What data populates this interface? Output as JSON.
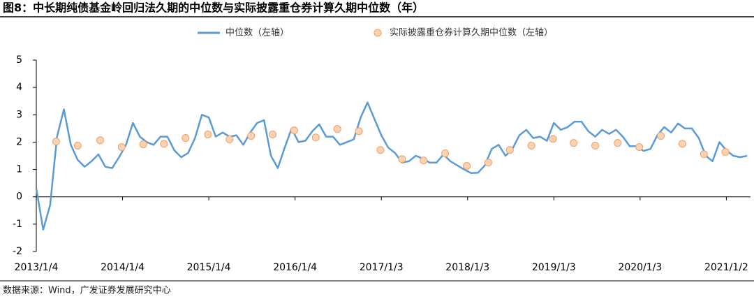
{
  "chart_data": {
    "type": "line",
    "title": "图8：中长期纯债基金岭回归法久期的中位数与实际披露重仓券计算久期中位数（年）",
    "source": "数据来源：Wind，广发证券发展研究中心",
    "xlim": [
      2013,
      2021.28
    ],
    "xticks": [
      {
        "value": 2013,
        "label": "2013/1/4"
      },
      {
        "value": 2014,
        "label": "2014/1/4"
      },
      {
        "value": 2015,
        "label": "2015/1/4"
      },
      {
        "value": 2016,
        "label": "2016/1/4"
      },
      {
        "value": 2017,
        "label": "2017/1/3"
      },
      {
        "value": 2018,
        "label": "2018/1/3"
      },
      {
        "value": 2019,
        "label": "2019/1/3"
      },
      {
        "value": 2020,
        "label": "2020/1/3"
      },
      {
        "value": 2021,
        "label": "2021/1/2"
      }
    ],
    "ylim": [
      -2,
      5
    ],
    "yticks": [
      -2,
      -1,
      0,
      1,
      2,
      3,
      4,
      5
    ],
    "legend": "top",
    "series": [
      {
        "name": "中位数（左轴）",
        "type": "line",
        "color": "#5b9bd5",
        "x": [
          2013,
          2013.08,
          2013.16,
          2013.24,
          2013.32,
          2013.4,
          2013.48,
          2013.56,
          2013.64,
          2013.72,
          2013.8,
          2013.88,
          2013.96,
          2014.04,
          2014.12,
          2014.2,
          2014.28,
          2014.36,
          2014.44,
          2014.52,
          2014.6,
          2014.68,
          2014.76,
          2014.84,
          2014.92,
          2015,
          2015.08,
          2015.16,
          2015.24,
          2015.32,
          2015.4,
          2015.48,
          2015.56,
          2015.64,
          2015.72,
          2015.8,
          2015.88,
          2015.96,
          2016.04,
          2016.12,
          2016.2,
          2016.28,
          2016.36,
          2016.44,
          2016.52,
          2016.6,
          2016.68,
          2016.76,
          2016.84,
          2016.92,
          2017,
          2017.08,
          2017.16,
          2017.24,
          2017.32,
          2017.4,
          2017.48,
          2017.56,
          2017.64,
          2017.72,
          2017.8,
          2017.88,
          2017.96,
          2018.04,
          2018.12,
          2018.2,
          2018.28,
          2018.36,
          2018.44,
          2018.52,
          2018.6,
          2018.68,
          2018.76,
          2018.84,
          2018.92,
          2019,
          2019.08,
          2019.16,
          2019.24,
          2019.32,
          2019.4,
          2019.48,
          2019.56,
          2019.64,
          2019.72,
          2019.8,
          2019.88,
          2019.96,
          2020.04,
          2020.12,
          2020.2,
          2020.28,
          2020.36,
          2020.44,
          2020.52,
          2020.6,
          2020.68,
          2020.76,
          2020.84,
          2020.92,
          2021,
          2021.08,
          2021.16,
          2021.24
        ],
        "values": [
          0.3,
          -1.2,
          -0.3,
          2.2,
          3.2,
          1.9,
          1.35,
          1.1,
          1.3,
          1.55,
          1.1,
          1.05,
          1.45,
          1.9,
          2.7,
          2.2,
          2.0,
          1.9,
          2.2,
          2.2,
          1.7,
          1.45,
          1.6,
          2.15,
          3.0,
          2.9,
          2.2,
          2.35,
          2.2,
          2.25,
          1.9,
          2.35,
          2.7,
          2.8,
          1.5,
          1.05,
          1.8,
          2.5,
          2.0,
          2.05,
          2.4,
          2.65,
          2.2,
          2.2,
          1.9,
          2.0,
          2.1,
          2.9,
          3.45,
          2.85,
          2.25,
          1.8,
          1.6,
          1.25,
          1.3,
          1.5,
          1.4,
          1.25,
          1.25,
          1.55,
          1.3,
          1.15,
          1.0,
          0.87,
          0.88,
          1.15,
          1.75,
          1.9,
          1.5,
          1.75,
          2.25,
          2.45,
          2.15,
          2.2,
          2.05,
          2.7,
          2.45,
          2.55,
          2.75,
          2.75,
          2.4,
          2.2,
          2.45,
          2.3,
          2.45,
          2.2,
          1.85,
          1.85,
          1.68,
          1.75,
          2.25,
          2.55,
          2.35,
          2.68,
          2.5,
          2.5,
          2.15,
          1.5,
          1.3,
          2.0,
          1.7,
          1.5,
          1.45,
          1.5
        ]
      },
      {
        "name": "实际披露重仓券计算久期中位数（左轴）",
        "type": "scatter",
        "color": "#fbd3b4",
        "edge": "#f0a060",
        "x": [
          2013.23,
          2013.48,
          2013.74,
          2013.99,
          2014.24,
          2014.48,
          2014.73,
          2014.99,
          2015.24,
          2015.49,
          2015.74,
          2015.99,
          2016.24,
          2016.49,
          2016.74,
          2016.99,
          2017.24,
          2017.49,
          2017.74,
          2017.99,
          2018.24,
          2018.49,
          2018.74,
          2018.99,
          2019.23,
          2019.48,
          2019.74,
          2019.99,
          2020.24,
          2020.49,
          2020.74,
          2020.99
        ],
        "values": [
          2.02,
          1.87,
          2.07,
          1.82,
          1.92,
          1.94,
          2.15,
          2.28,
          2.1,
          2.23,
          2.28,
          2.43,
          2.17,
          2.48,
          2.4,
          1.71,
          1.38,
          1.33,
          1.59,
          1.13,
          1.25,
          1.71,
          1.87,
          2.12,
          1.97,
          1.87,
          1.97,
          1.82,
          2.23,
          1.94,
          1.56,
          1.64
        ]
      }
    ]
  }
}
